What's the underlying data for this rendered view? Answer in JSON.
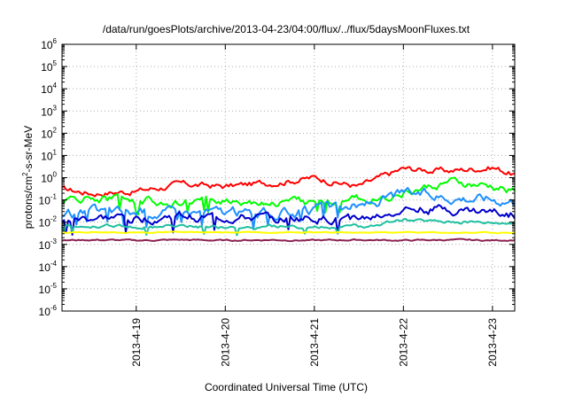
{
  "chart_data": {
    "type": "line",
    "title": "/data/run/goesPlots/archive/2013-04-23/04:00/flux/../flux/5daysMoonFluxes.txt",
    "xlabel": "Coordinated Universal Time (UTC)",
    "ylabel": {
      "base": "protons/cm",
      "sup": "2",
      "rest": "-s-sr-MeV"
    },
    "x_ticks": [
      "2013-4-19",
      "2013-4-20",
      "2013-4-21",
      "2013-4-22",
      "2013-4-23"
    ],
    "y_ticks": [
      {
        "base": "10",
        "exp": "6"
      },
      {
        "base": "10",
        "exp": "5"
      },
      {
        "base": "10",
        "exp": "4"
      },
      {
        "base": "10",
        "exp": "3"
      },
      {
        "base": "10",
        "exp": "2"
      },
      {
        "base": "10",
        "exp": "1"
      },
      {
        "base": "10",
        "exp": "0"
      },
      {
        "base": "10",
        "exp": "-1"
      },
      {
        "base": "10",
        "exp": "-2"
      },
      {
        "base": "10",
        "exp": "-3"
      },
      {
        "base": "10",
        "exp": "-4"
      },
      {
        "base": "10",
        "exp": "-5"
      },
      {
        "base": "10",
        "exp": "-6"
      }
    ],
    "yscale": "log",
    "ylim": [
      1e-06,
      1000000.0
    ],
    "xlim": [
      "2013-04-18T04:00",
      "2013-04-23T06:00"
    ],
    "grid": true,
    "legend": "none",
    "series": [
      {
        "color": "#ff0000",
        "x": [
          "2013-04-18T04:00",
          "2013-04-18T12:00",
          "2013-04-19T00:00",
          "2013-04-19T12:00",
          "2013-04-20T00:00",
          "2013-04-20T12:00",
          "2013-04-21T00:00",
          "2013-04-21T12:00",
          "2013-04-22T00:00",
          "2013-04-22T12:00",
          "2013-04-23T00:00",
          "2013-04-23T06:00"
        ],
        "values": [
          0.3,
          0.2,
          0.25,
          0.5,
          0.4,
          0.6,
          1.0,
          0.4,
          2.5,
          2.0,
          3.0,
          1.4
        ]
      },
      {
        "color": "#00ff00",
        "x": [
          "2013-04-18T04:00",
          "2013-04-18T12:00",
          "2013-04-19T00:00",
          "2013-04-19T12:00",
          "2013-04-20T00:00",
          "2013-04-20T12:00",
          "2013-04-21T00:00",
          "2013-04-21T12:00",
          "2013-04-22T00:00",
          "2013-04-22T12:00",
          "2013-04-23T00:00",
          "2013-04-23T06:00"
        ],
        "values": [
          0.1,
          0.12,
          0.1,
          0.07,
          0.1,
          0.08,
          0.08,
          0.1,
          0.2,
          0.6,
          0.35,
          0.25
        ]
      },
      {
        "color": "#1e90ff",
        "x": [
          "2013-04-18T04:00",
          "2013-04-18T12:00",
          "2013-04-19T00:00",
          "2013-04-19T12:00",
          "2013-04-20T00:00",
          "2013-04-20T12:00",
          "2013-04-21T00:00",
          "2013-04-21T12:00",
          "2013-04-22T00:00",
          "2013-04-22T12:00",
          "2013-04-23T00:00",
          "2013-04-23T06:00"
        ],
        "values": [
          0.02,
          0.03,
          0.03,
          0.03,
          0.03,
          0.025,
          0.03,
          0.05,
          0.2,
          0.15,
          0.12,
          0.1
        ]
      },
      {
        "color": "#0000cd",
        "x": [
          "2013-04-18T04:00",
          "2013-04-18T12:00",
          "2013-04-19T00:00",
          "2013-04-19T12:00",
          "2013-04-20T00:00",
          "2013-04-20T12:00",
          "2013-04-21T00:00",
          "2013-04-21T12:00",
          "2013-04-22T00:00",
          "2013-04-22T12:00",
          "2013-04-23T00:00",
          "2013-04-23T06:00"
        ],
        "values": [
          0.01,
          0.015,
          0.015,
          0.018,
          0.016,
          0.014,
          0.015,
          0.012,
          0.04,
          0.04,
          0.03,
          0.022
        ]
      },
      {
        "color": "#20c0a0",
        "x": [
          "2013-04-18T04:00",
          "2013-04-18T12:00",
          "2013-04-19T00:00",
          "2013-04-19T12:00",
          "2013-04-20T00:00",
          "2013-04-20T12:00",
          "2013-04-21T00:00",
          "2013-04-21T12:00",
          "2013-04-22T00:00",
          "2013-04-22T12:00",
          "2013-04-23T00:00",
          "2013-04-23T06:00"
        ],
        "values": [
          0.006,
          0.007,
          0.006,
          0.007,
          0.006,
          0.006,
          0.006,
          0.006,
          0.012,
          0.011,
          0.01,
          0.01
        ]
      },
      {
        "color": "#ffff00",
        "x": [
          "2013-04-18T04:00",
          "2013-04-18T12:00",
          "2013-04-19T00:00",
          "2013-04-19T12:00",
          "2013-04-20T00:00",
          "2013-04-20T12:00",
          "2013-04-21T00:00",
          "2013-04-21T12:00",
          "2013-04-22T00:00",
          "2013-04-22T12:00",
          "2013-04-23T00:00",
          "2013-04-23T06:00"
        ],
        "values": [
          0.0035,
          0.0035,
          0.0034,
          0.0035,
          0.0034,
          0.0035,
          0.0034,
          0.0034,
          0.0035,
          0.0034,
          0.0034,
          0.0034
        ]
      },
      {
        "color": "#8b2252",
        "x": [
          "2013-04-18T04:00",
          "2013-04-18T12:00",
          "2013-04-19T00:00",
          "2013-04-19T12:00",
          "2013-04-20T00:00",
          "2013-04-20T12:00",
          "2013-04-21T00:00",
          "2013-04-21T12:00",
          "2013-04-22T00:00",
          "2013-04-22T12:00",
          "2013-04-23T00:00",
          "2013-04-23T06:00"
        ],
        "values": [
          0.0015,
          0.0016,
          0.0015,
          0.0016,
          0.0015,
          0.0016,
          0.0015,
          0.0016,
          0.0015,
          0.0016,
          0.0015,
          0.0016
        ]
      }
    ]
  }
}
